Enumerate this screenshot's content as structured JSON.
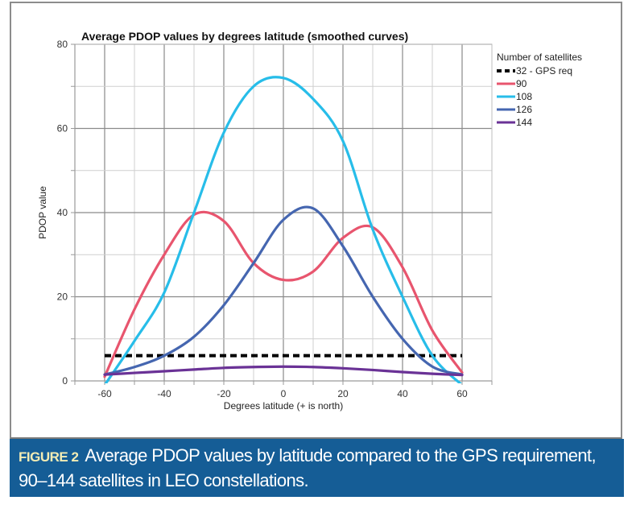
{
  "chart_data": {
    "type": "line",
    "title": "Average PDOP values by degrees latitude (smoothed curves)",
    "xlabel": "Degrees latitude (+ is north)",
    "ylabel": "PDOP value",
    "xlim": [
      -70,
      70
    ],
    "ylim": [
      0,
      80
    ],
    "xticks": [
      -60,
      -40,
      -20,
      0,
      20,
      40,
      60
    ],
    "yticks": [
      0,
      20,
      40,
      60,
      80
    ],
    "x_minor_step": 10,
    "y_minor_step": 10,
    "grid": true,
    "legend_title": "Number of satellites",
    "legend_position": "right",
    "x": [
      -60,
      -50,
      -40,
      -30,
      -20,
      -10,
      0,
      10,
      20,
      30,
      40,
      50,
      60
    ],
    "series": [
      {
        "name": "32 - GPS req",
        "color": "#000000",
        "dashed": true,
        "values": [
          6,
          6,
          6,
          6,
          6,
          6,
          6,
          6,
          6,
          6,
          6,
          6,
          6
        ]
      },
      {
        "name": "90",
        "color": "#e8556e",
        "dashed": false,
        "values": [
          1,
          17,
          30,
          39.5,
          38,
          28,
          24,
          26,
          34,
          36.5,
          27,
          12,
          2
        ]
      },
      {
        "name": "108",
        "color": "#27bde9",
        "dashed": false,
        "values": [
          -1,
          9.5,
          21,
          40,
          59,
          70,
          72,
          67,
          57,
          36,
          20,
          6,
          -1
        ]
      },
      {
        "name": "126",
        "color": "#4566b0",
        "dashed": false,
        "values": [
          1.5,
          3.3,
          6,
          10.5,
          18,
          28,
          38.3,
          41,
          32,
          20,
          10,
          3.4,
          1.5
        ]
      },
      {
        "name": "144",
        "color": "#6a3296",
        "dashed": false,
        "values": [
          1.5,
          1.9,
          2.3,
          2.7,
          3.1,
          3.3,
          3.4,
          3.3,
          3.0,
          2.6,
          2.1,
          1.7,
          1.4
        ]
      }
    ]
  },
  "caption": {
    "figure_label": "FIGURE 2",
    "text": "Average PDOP values by latitude compared to the GPS requirement, 90–144 satellites in LEO constellations."
  }
}
